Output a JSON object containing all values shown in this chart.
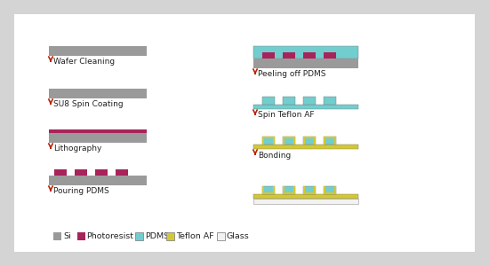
{
  "bg_color": "#d4d4d4",
  "panel_bg": "#ffffff",
  "colors": {
    "Si": "#9a9a9a",
    "Photoresist": "#a8235a",
    "PDMS": "#72cece",
    "Teflon_AF": "#d4c832",
    "Glass": "#f2f2f2",
    "arrow": "#bb2200",
    "text": "#222222"
  },
  "legend_items": [
    {
      "label": "Si",
      "color": "#9a9a9a",
      "edge": false
    },
    {
      "label": "Photoresist",
      "color": "#a8235a",
      "edge": false
    },
    {
      "label": "PDMS",
      "color": "#72cece",
      "edge": true
    },
    {
      "label": "Teflon AF",
      "color": "#d4c832",
      "edge": true
    },
    {
      "label": "Glass",
      "color": "#f2f2f2",
      "edge": true
    }
  ]
}
